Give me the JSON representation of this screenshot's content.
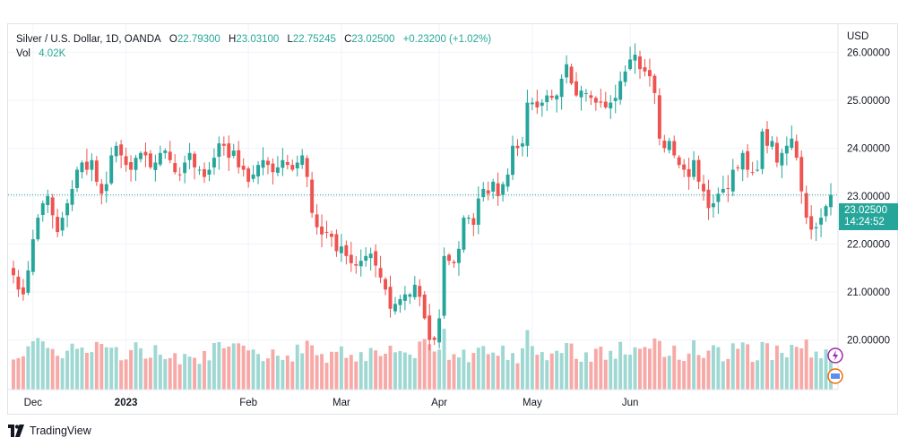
{
  "header": {
    "symbol": "Silver / U.S. Dollar, 1D, OANDA",
    "open_label": "O",
    "open": "22.79300",
    "high_label": "H",
    "high": "23.03100",
    "low_label": "L",
    "low": "22.75245",
    "close_label": "C",
    "close": "23.02500",
    "change": "+0.23200 (+1.02%)",
    "vol_label": "Vol",
    "vol": "4.02K"
  },
  "axis": {
    "currency": "USD"
  },
  "price_tag": {
    "price": "23.02500",
    "countdown": "14:24:52"
  },
  "footer": {
    "brand": "TradingView"
  },
  "colors": {
    "up": "#26a69a",
    "down": "#ef5350",
    "up_vol": "#9fd8d2",
    "down_vol": "#f7a9a7",
    "grid": "#f0f3fa"
  },
  "icons": [
    "tradingview-logo-icon",
    "alert-icon",
    "indicator-icon"
  ],
  "chart_data": {
    "type": "candlestick",
    "title": "Silver / U.S. Dollar, 1D, OANDA",
    "ylabel": "USD",
    "ylim": [
      19.3,
      26.4
    ],
    "y_ticks": [
      "26.00000",
      "25.00000",
      "24.00000",
      "23.00000",
      "22.00000",
      "21.00000",
      "20.00000"
    ],
    "x_ticks": [
      "Dec",
      "2023",
      "Feb",
      "Mar",
      "Apr",
      "May",
      "Jun"
    ],
    "last_price": 23.025,
    "series": [
      {
        "name": "price",
        "close_path": [
          21.35,
          21.05,
          20.95,
          21.45,
          22.1,
          22.55,
          22.85,
          23.0,
          22.6,
          22.25,
          22.55,
          22.85,
          23.15,
          23.55,
          23.7,
          23.55,
          23.75,
          23.3,
          23.05,
          23.25,
          23.85,
          24.05,
          23.85,
          23.65,
          23.55,
          23.8,
          23.9,
          23.85,
          23.6,
          23.7,
          23.9,
          23.95,
          23.75,
          23.5,
          23.45,
          23.7,
          23.9,
          23.6,
          23.55,
          23.4,
          23.55,
          23.8,
          24.1,
          24.05,
          23.8,
          23.95,
          23.6,
          23.55,
          23.3,
          23.45,
          23.65,
          23.75,
          23.65,
          23.5,
          23.6,
          23.75,
          23.65,
          23.55,
          23.7,
          23.85,
          23.4,
          22.65,
          22.35,
          22.2,
          22.25,
          22.15,
          21.85,
          21.95,
          21.75,
          21.6,
          21.55,
          21.65,
          21.75,
          21.8,
          21.55,
          21.3,
          21.05,
          20.65,
          20.75,
          20.85,
          20.95,
          20.95,
          21.15,
          20.9,
          20.45,
          20.0,
          20.0,
          20.45,
          21.75,
          21.65,
          21.6,
          21.9,
          22.55,
          22.55,
          22.4,
          22.95,
          23.15,
          23.05,
          23.3,
          23.0,
          23.25,
          23.45,
          24.05,
          24.0,
          24.1,
          24.95,
          24.95,
          24.85,
          24.95,
          25.1,
          25.05,
          25.1,
          25.45,
          25.75,
          25.35,
          25.1,
          25.2,
          25.15,
          25.05,
          24.95,
          24.95,
          24.85,
          24.95,
          25.05,
          25.4,
          25.6,
          25.85,
          25.95,
          25.65,
          25.6,
          25.5,
          25.15,
          24.2,
          24.0,
          24.15,
          23.85,
          23.65,
          23.55,
          23.4,
          23.75,
          23.3,
          23.1,
          22.75,
          22.85,
          23.05,
          23.15,
          23.15,
          23.55,
          23.6,
          23.9,
          23.55,
          23.5,
          23.55,
          24.35,
          24.05,
          24.15,
          23.7,
          23.9,
          24.05,
          24.2,
          23.8,
          23.1,
          22.55,
          22.3,
          22.35,
          22.55,
          22.79,
          23.025
        ]
      },
      {
        "name": "volume",
        "note": "relative volume bars beneath candles"
      }
    ]
  }
}
